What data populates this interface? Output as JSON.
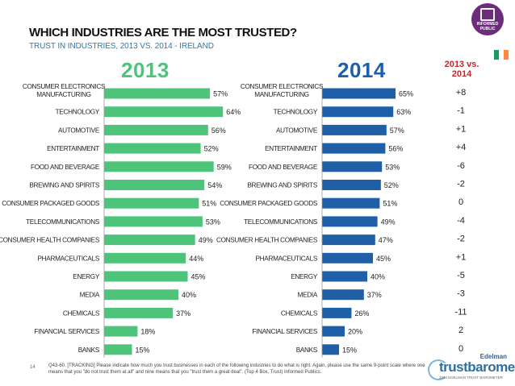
{
  "header": {
    "title": "WHICH INDUSTRIES ARE THE MOST TRUSTED?",
    "subtitle": "TRUST IN INDUSTRIES, 2013 VS. 2014 - IRELAND"
  },
  "badge": {
    "label": "INFORMED PUBLIC",
    "color": "#6b2d7a"
  },
  "flag": {
    "colors": [
      "#169b62",
      "#ffffff",
      "#ff883e"
    ]
  },
  "diff_header": {
    "line1": "2013 vs.",
    "line2": "2014"
  },
  "chart_data": {
    "type": "bar",
    "orientation": "horizontal",
    "categories": [
      "CONSUMER ELECTRONICS MANUFACTURING",
      "TECHNOLOGY",
      "AUTOMOTIVE",
      "ENTERTAINMENT",
      "FOOD AND BEVERAGE",
      "BREWING AND SPIRITS",
      "CONSUMER PACKAGED GOODS",
      "TELECOMMUNICATIONS",
      "CONSUMER HEALTH COMPANIES",
      "PHARMACEUTICALS",
      "ENERGY",
      "MEDIA",
      "CHEMICALS",
      "FINANCIAL SERVICES",
      "BANKS"
    ],
    "panels": [
      {
        "name": "2013",
        "color": "#4ec47a",
        "categories": [
          "CONSUMER ELECTRONICS MANUFACTURING",
          "TECHNOLOGY",
          "AUTOMOTIVE",
          "ENTERTAINMENT",
          "FOOD AND BEVERAGE",
          "BREWING AND SPIRITS",
          "CONSUMER PACKAGED GOODS",
          "TELECOMMUNICATIONS",
          "CONSUMER HEALTH COMPANIES",
          "PHARMACEUTICALS",
          "ENERGY",
          "MEDIA",
          "CHEMICALS",
          "FINANCIAL SERVICES",
          "BANKS"
        ],
        "values": [
          57,
          64,
          56,
          52,
          59,
          54,
          51,
          53,
          49,
          44,
          45,
          40,
          37,
          18,
          15
        ]
      },
      {
        "name": "2014",
        "color": "#1f5fa8",
        "categories": [
          "CONSUMER ELECTRONICS MANUFACTURING",
          "TECHNOLOGY",
          "AUTOMOTIVE",
          "ENTERTAINMENT",
          "FOOD AND BEVERAGE",
          "BREWING AND SPIRITS",
          "CONSUMER PACKAGED GOODS",
          "TELECOMMUNICATIONS",
          "CONSUMER HEALTH COMPANIES",
          "PHARMACEUTICALS",
          "ENERGY",
          "MEDIA",
          "CHEMICALS",
          "FINANCIAL SERVICES",
          "BANKS"
        ],
        "values": [
          65,
          63,
          57,
          56,
          53,
          52,
          51,
          49,
          47,
          45,
          40,
          37,
          26,
          20,
          15
        ]
      }
    ],
    "differences": [
      "+8",
      "-1",
      "+1",
      "+4",
      "-6",
      "-2",
      "0",
      "-4",
      "-2",
      "+1",
      "-5",
      "-3",
      "-11",
      "2",
      "0"
    ],
    "value_suffix": "%",
    "xlim": [
      0,
      100
    ]
  },
  "footer": {
    "page_number": "14",
    "note": "Q43-60. [TRACKING] Please indicate how much you trust businesses in each of the following industries to do what is right. Again, please use the same 9-point scale where one means that you \"do not trust them at all\" and nine means that you \"trust them a great deal\". (Top 4 Box, Trust) Informed Publics."
  },
  "logo": {
    "edelman": "Edelman",
    "trust": "trustbarometer",
    "sub": "2014 EDELMAN TRUST BAROMETER"
  }
}
